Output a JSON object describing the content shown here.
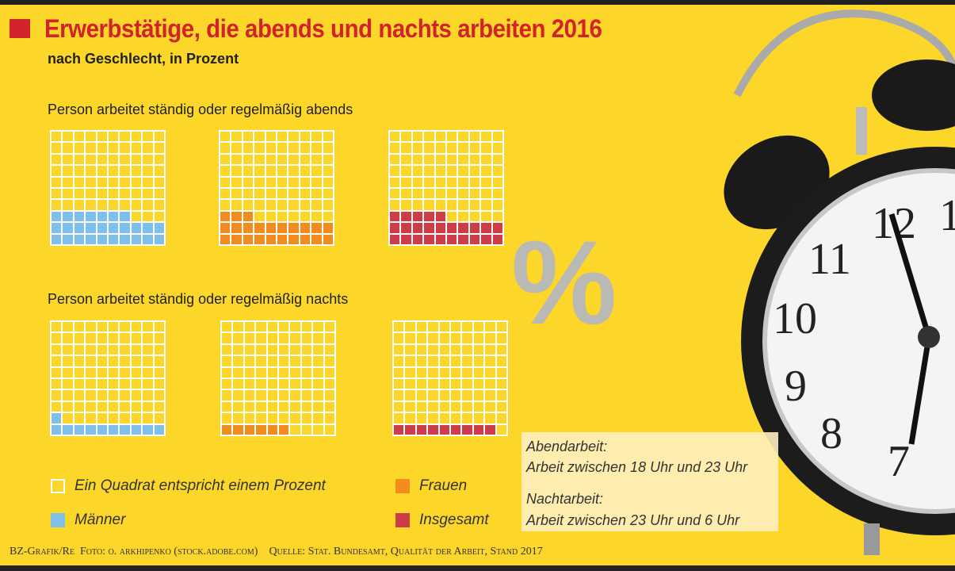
{
  "title": "Erwerbstätige, die abends und nachts arbeiten 2016",
  "subtitle": "nach Geschlecht, in Prozent",
  "percent_symbol": "%",
  "colors": {
    "background": "#fdd62a",
    "maenner": "#7fc0ea",
    "frauen": "#f28c1e",
    "insgesamt": "#d03c45",
    "empty": "#fdd62a",
    "grid": "#ffffff",
    "title": "#d2232a"
  },
  "chart_data": [
    {
      "type": "waffle",
      "title": "Person arbeitet ständig oder regelmäßig abends",
      "unit": "Prozent",
      "grid": [
        10,
        10
      ],
      "series": [
        {
          "name": "Männer",
          "value": 27
        },
        {
          "name": "Frauen",
          "value": 23
        },
        {
          "name": "Insgesamt",
          "value": 25
        }
      ]
    },
    {
      "type": "waffle",
      "title": "Person arbeitet ständig oder regelmäßig nachts",
      "unit": "Prozent",
      "grid": [
        10,
        10
      ],
      "series": [
        {
          "name": "Männer",
          "value": 11
        },
        {
          "name": "Frauen",
          "value": 6
        },
        {
          "name": "Insgesamt",
          "value": 9
        }
      ]
    }
  ],
  "legend": {
    "square": "Ein Quadrat entspricht einem Prozent",
    "maenner": "Männer",
    "frauen": "Frauen",
    "insgesamt": "Insgesamt"
  },
  "info": {
    "abend_title": "Abendarbeit:",
    "abend_text": "Arbeit  zwischen 18 Uhr und 23 Uhr",
    "nacht_title": "Nachtarbeit:",
    "nacht_text": " Arbeit zwischen 23 Uhr und 6 Uhr"
  },
  "footer": {
    "credit": "BZ-Grafik/Re",
    "photo": "Foto: o. arkhipenko (stock.adobe.com)",
    "source": "Quelle: Stat. Bundesamt, Qualität der Arbeit, Stand 2017"
  },
  "clock_numerals": [
    "12",
    "1",
    "11",
    "10",
    "9",
    "8",
    "7"
  ]
}
